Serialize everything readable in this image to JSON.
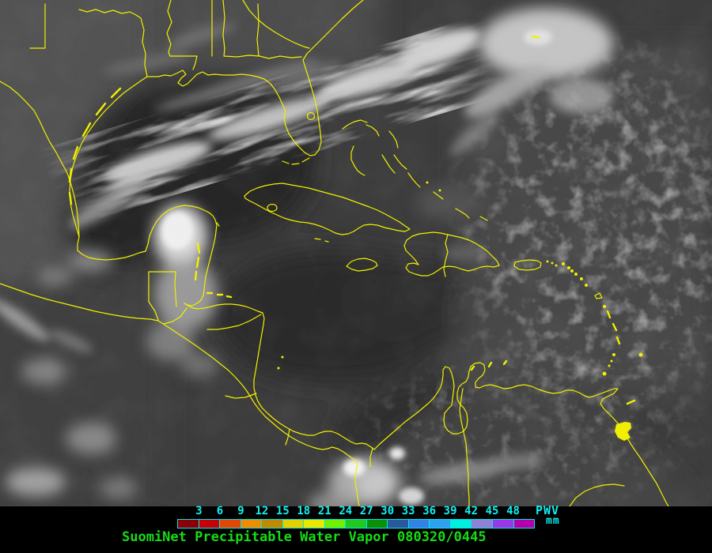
{
  "map": {
    "overlay_color": "#F0F000",
    "features": [
      "us-atlantic-gulf-coast",
      "us-state-borders",
      "rio-grande",
      "florida-lake-okeechobee",
      "florida-keys",
      "texas-barrier-islands",
      "yucatan-peninsula",
      "cozumel",
      "belize-cayes",
      "guatemala-borders",
      "honduras-nicaragua-coast",
      "roatan-islands",
      "central-america-pacific-coast",
      "central-america-borders",
      "cuba",
      "isla-de-la-juventud",
      "cayman-islands",
      "jamaica",
      "hispaniola",
      "haiti-dr-border",
      "puerto-rico",
      "virgin-islands",
      "bahamas",
      "turks-and-caicos",
      "lesser-antilles",
      "trinidad",
      "tobago",
      "barbados",
      "aruba-curacao-bonaire",
      "south-america-north-coast",
      "lake-maracaibo",
      "colombia-venezuela-border",
      "orinoco-river",
      "station-mark"
    ]
  },
  "legend": {
    "tick_labels": [
      "3",
      "6",
      "9",
      "12",
      "15",
      "18",
      "21",
      "24",
      "27",
      "30",
      "33",
      "36",
      "39",
      "42",
      "45",
      "48"
    ],
    "segment_colors": [
      "#8B0008",
      "#C40008",
      "#E24706",
      "#F08C00",
      "#BE8A00",
      "#E2D000",
      "#E8E800",
      "#70F000",
      "#20C820",
      "#089008",
      "#2A589C",
      "#3280E8",
      "#30A0F0",
      "#00F0E0",
      "#9080D8",
      "#9838E8",
      "#B400AC"
    ],
    "border_color": "#00E8E8",
    "tick_color": "#10F0F0",
    "unit_line1": "PWV",
    "unit_line2": "mm"
  },
  "caption": {
    "text": "SuomiNet Precipitable Water Vapor 080320/0445",
    "color": "#16DC16"
  }
}
